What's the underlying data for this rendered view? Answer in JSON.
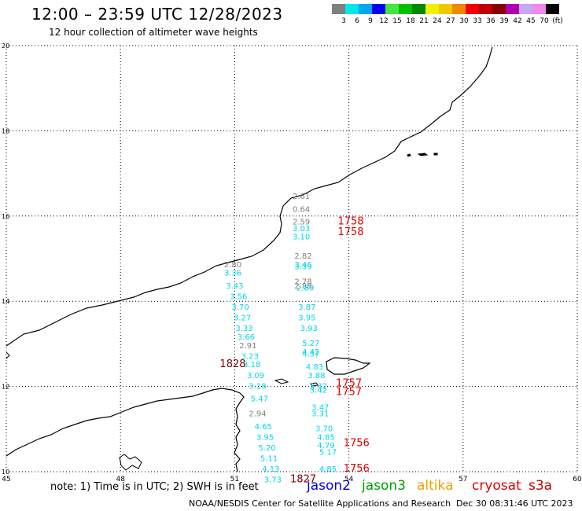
{
  "header": {
    "title": "12:00 – 23:59 UTC 12/28/2023",
    "subtitle": "12 hour collection of altimeter wave heights"
  },
  "colorbar": {
    "colors": [
      "#808080",
      "#00e8e8",
      "#00a8f0",
      "#0000f0",
      "#40e840",
      "#00c000",
      "#008800",
      "#f0f000",
      "#f0c800",
      "#f08800",
      "#f00000",
      "#c00000",
      "#880000",
      "#b000b0",
      "#c8a8f0",
      "#f088f0",
      "#000000"
    ],
    "labels": [
      "3",
      "6",
      "9",
      "12",
      "15",
      "18",
      "21",
      "24",
      "27",
      "30",
      "33",
      "36",
      "39",
      "42",
      "45",
      "70",
      "(ft)"
    ]
  },
  "map": {
    "lon_range": [
      45,
      60
    ],
    "lat_range": [
      10,
      20
    ],
    "lon_ticks": [
      "45",
      "48",
      "51",
      "54",
      "57",
      "60"
    ],
    "lat_ticks": [
      "10",
      "12",
      "14",
      "16",
      "18",
      "20"
    ]
  },
  "chart_data": {
    "type": "scatter",
    "series": [
      {
        "color": "#808080",
        "points": [
          {
            "lon": 52.75,
            "lat": 16.4,
            "v": "2.61"
          },
          {
            "lon": 52.75,
            "lat": 16.1,
            "v": "0.64"
          },
          {
            "lon": 52.75,
            "lat": 15.8,
            "v": "2.59"
          },
          {
            "lon": 52.8,
            "lat": 15.0,
            "v": "2.82"
          },
          {
            "lon": 50.95,
            "lat": 14.8,
            "v": "2.80"
          },
          {
            "lon": 52.8,
            "lat": 14.4,
            "v": "2.78"
          },
          {
            "lon": 52.8,
            "lat": 14.3,
            "v": "2.88"
          },
          {
            "lon": 51.35,
            "lat": 12.9,
            "v": "2.91"
          },
          {
            "lon": 51.6,
            "lat": 11.3,
            "v": "2.94"
          }
        ]
      },
      {
        "color": "#00d8e8",
        "points": [
          {
            "lon": 52.75,
            "lat": 15.65,
            "v": "3.03"
          },
          {
            "lon": 52.75,
            "lat": 15.45,
            "v": "3.10"
          },
          {
            "lon": 52.8,
            "lat": 14.8,
            "v": "3.46"
          },
          {
            "lon": 52.8,
            "lat": 14.75,
            "v": "3.39"
          },
          {
            "lon": 52.85,
            "lat": 14.25,
            "v": "2.89"
          },
          {
            "lon": 50.95,
            "lat": 14.6,
            "v": "3.36"
          },
          {
            "lon": 51.0,
            "lat": 14.3,
            "v": "3.43"
          },
          {
            "lon": 51.1,
            "lat": 14.05,
            "v": "3.56"
          },
          {
            "lon": 51.15,
            "lat": 13.8,
            "v": "3.70"
          },
          {
            "lon": 51.2,
            "lat": 13.55,
            "v": "3.27"
          },
          {
            "lon": 51.25,
            "lat": 13.3,
            "v": "3.33"
          },
          {
            "lon": 51.3,
            "lat": 13.1,
            "v": "3.66"
          },
          {
            "lon": 51.4,
            "lat": 12.65,
            "v": "3.23"
          },
          {
            "lon": 51.45,
            "lat": 12.45,
            "v": "3.18"
          },
          {
            "lon": 51.55,
            "lat": 12.2,
            "v": "3.09"
          },
          {
            "lon": 51.6,
            "lat": 11.95,
            "v": "3.18"
          },
          {
            "lon": 51.65,
            "lat": 11.65,
            "v": "5.47"
          },
          {
            "lon": 51.75,
            "lat": 11.0,
            "v": "4.65"
          },
          {
            "lon": 51.8,
            "lat": 10.75,
            "v": "3.95"
          },
          {
            "lon": 51.85,
            "lat": 10.5,
            "v": "5.20"
          },
          {
            "lon": 51.9,
            "lat": 10.25,
            "v": "5.11"
          },
          {
            "lon": 51.95,
            "lat": 10.0,
            "v": "4.13"
          },
          {
            "lon": 52.0,
            "lat": 9.75,
            "v": "3.73"
          },
          {
            "lon": 52.9,
            "lat": 13.8,
            "v": "3.87"
          },
          {
            "lon": 52.9,
            "lat": 13.55,
            "v": "3.95"
          },
          {
            "lon": 52.95,
            "lat": 13.3,
            "v": "3.93"
          },
          {
            "lon": 53.0,
            "lat": 12.95,
            "v": "5.27"
          },
          {
            "lon": 53.0,
            "lat": 12.75,
            "v": "4.42"
          },
          {
            "lon": 53.0,
            "lat": 12.7,
            "v": "4.37"
          },
          {
            "lon": 53.1,
            "lat": 12.4,
            "v": "4.83"
          },
          {
            "lon": 53.15,
            "lat": 12.2,
            "v": "3.88"
          },
          {
            "lon": 53.2,
            "lat": 11.95,
            "v": "3.32"
          },
          {
            "lon": 53.2,
            "lat": 11.85,
            "v": "3.42"
          },
          {
            "lon": 53.25,
            "lat": 11.45,
            "v": "3.47"
          },
          {
            "lon": 53.25,
            "lat": 11.3,
            "v": "3.31"
          },
          {
            "lon": 53.35,
            "lat": 10.95,
            "v": "3.70"
          },
          {
            "lon": 53.4,
            "lat": 10.75,
            "v": "4.85"
          },
          {
            "lon": 53.4,
            "lat": 10.55,
            "v": "4.79"
          },
          {
            "lon": 53.45,
            "lat": 10.4,
            "v": "5.17"
          },
          {
            "lon": 53.45,
            "lat": 10.0,
            "v": "4.85"
          }
        ]
      },
      {
        "color": "#e00000",
        "points": [
          {
            "lon": 54.05,
            "lat": 15.8,
            "v": "1758"
          },
          {
            "lon": 54.05,
            "lat": 15.55,
            "v": "1758"
          },
          {
            "lon": 54.0,
            "lat": 12.0,
            "v": "1757"
          },
          {
            "lon": 54.0,
            "lat": 11.8,
            "v": "1757"
          },
          {
            "lon": 54.2,
            "lat": 10.6,
            "v": "1756"
          },
          {
            "lon": 54.2,
            "lat": 10.0,
            "v": "1756"
          }
        ]
      },
      {
        "color": "#800000",
        "points": [
          {
            "lon": 50.95,
            "lat": 12.45,
            "v": "1828"
          },
          {
            "lon": 52.8,
            "lat": 9.75,
            "v": "1827"
          }
        ]
      }
    ]
  },
  "note": "note: 1) Time is in UTC; 2) SWH is in feet",
  "satellites": [
    {
      "name": "jason2",
      "color": "#0000e0"
    },
    {
      "name": "jason3",
      "color": "#00a000"
    },
    {
      "name": "altika",
      "color": "#f0a000"
    },
    {
      "name": "cryosat",
      "color": "#e00000"
    },
    {
      "name": "s3a",
      "color": "#c00000"
    }
  ],
  "footer": {
    "credit": "NOAA/NESDIS Center for Satellite Applications and Research",
    "timestamp": "Dec 30 08:31:46 UTC 2023"
  }
}
